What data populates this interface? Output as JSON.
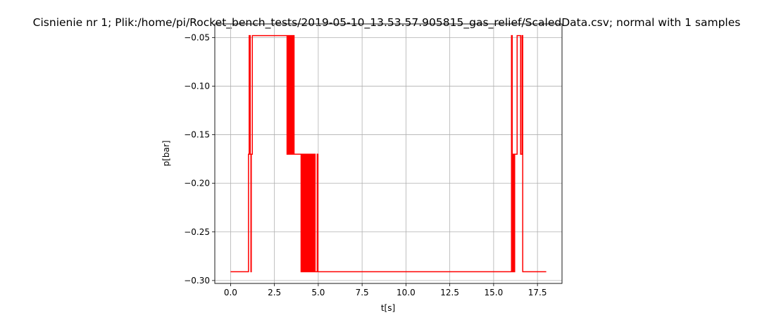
{
  "chart_data": {
    "type": "line",
    "title": "Cisnienie nr 1; Plik:/home/pi/Rocket_bench_tests/2019-05-10_13.53.57.905815_gas_relief/ScaledData.csv; normal with 1 samples",
    "xlabel": "t[s]",
    "ylabel": "p[bar]",
    "xlim": [
      -0.9,
      18.9
    ],
    "ylim": [
      -0.303,
      -0.036
    ],
    "xticks": [
      0.0,
      2.5,
      5.0,
      7.5,
      10.0,
      12.5,
      15.0,
      17.5
    ],
    "xtick_labels": [
      "0.0",
      "2.5",
      "5.0",
      "7.5",
      "10.0",
      "12.5",
      "15.0",
      "17.5"
    ],
    "yticks": [
      -0.05,
      -0.1,
      -0.15,
      -0.2,
      -0.25,
      -0.3
    ],
    "ytick_labels": [
      "−0.05",
      "−0.10",
      "−0.15",
      "−0.20",
      "−0.25",
      "−0.30"
    ],
    "grid": true,
    "series": [
      {
        "color": "#ff0000",
        "drawstyle": "steps-post",
        "x": [
          0.0,
          1.02,
          1.06,
          1.12,
          1.16,
          1.18,
          1.24,
          1.28,
          1.32,
          3.22,
          3.26,
          3.3,
          3.34,
          3.38,
          3.42,
          3.46,
          3.5,
          3.54,
          3.58,
          3.62,
          3.66,
          3.72,
          4.02,
          4.08,
          4.12,
          4.18,
          4.22,
          4.28,
          4.32,
          4.38,
          4.44,
          4.48,
          4.54,
          4.58,
          4.62,
          4.68,
          4.72,
          4.78,
          4.82,
          4.94,
          4.98,
          16.02,
          16.06,
          16.12,
          16.16,
          16.2,
          16.3,
          16.34,
          16.5,
          16.54,
          16.62,
          16.66,
          18.0
        ],
        "y": [
          -0.291,
          -0.17,
          -0.048,
          -0.17,
          -0.291,
          -0.17,
          -0.048,
          -0.048,
          -0.048,
          -0.17,
          -0.048,
          -0.17,
          -0.048,
          -0.17,
          -0.048,
          -0.17,
          -0.048,
          -0.17,
          -0.048,
          -0.17,
          -0.17,
          -0.17,
          -0.291,
          -0.17,
          -0.291,
          -0.17,
          -0.291,
          -0.17,
          -0.291,
          -0.17,
          -0.291,
          -0.17,
          -0.291,
          -0.17,
          -0.291,
          -0.17,
          -0.291,
          -0.17,
          -0.291,
          -0.17,
          -0.291,
          -0.048,
          -0.291,
          -0.17,
          -0.291,
          -0.17,
          -0.17,
          -0.048,
          -0.048,
          -0.17,
          -0.048,
          -0.291,
          -0.291
        ]
      }
    ]
  }
}
